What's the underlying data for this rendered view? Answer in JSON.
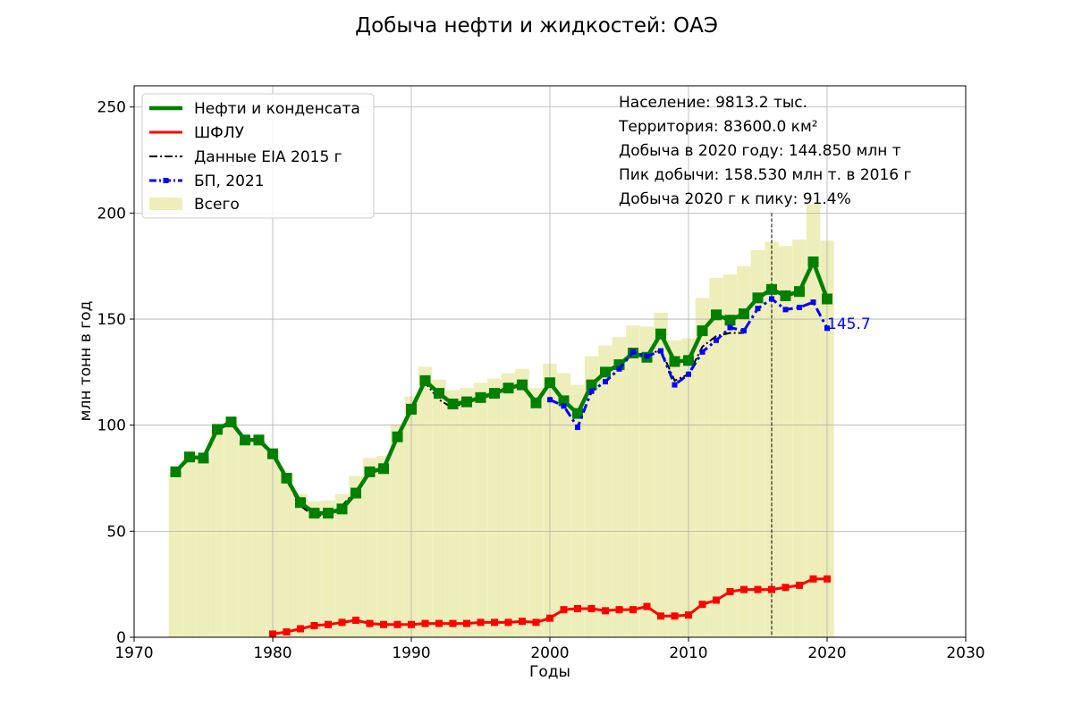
{
  "chart_data": {
    "type": "line",
    "title": "Добыча нефти и жидкостей: ОАЭ",
    "xlabel": "Годы",
    "ylabel": "млн тонн в год",
    "xlim": [
      1970,
      2030
    ],
    "ylim": [
      0,
      260
    ],
    "xticks": [
      1970,
      1980,
      1990,
      2000,
      2010,
      2020,
      2030
    ],
    "yticks": [
      0,
      50,
      100,
      150,
      200,
      250
    ],
    "grid": true,
    "legend_position": "top-left",
    "info_lines": [
      "Население: 9813.2 тыс.",
      "Территория: 83600.0 км²",
      "Добыча в 2020 году: 144.850 млн т",
      "Пик добычи: 158.530 млн т. в 2016 г",
      "Добыча 2020 г к пику: 91.4%"
    ],
    "peak_line_year": 2016,
    "last_value_label": "145.7",
    "series": [
      {
        "name": "Нефти и конденсата",
        "color": "#008000",
        "style": "solid-square",
        "x": [
          1973,
          1974,
          1975,
          1976,
          1977,
          1978,
          1979,
          1980,
          1981,
          1982,
          1983,
          1984,
          1985,
          1986,
          1987,
          1988,
          1989,
          1990,
          1991,
          1992,
          1993,
          1994,
          1995,
          1996,
          1997,
          1998,
          1999,
          2000,
          2001,
          2002,
          2003,
          2004,
          2005,
          2006,
          2007,
          2008,
          2009,
          2010,
          2011,
          2012,
          2013,
          2014,
          2015,
          2016,
          2017,
          2018,
          2019,
          2020
        ],
        "values": [
          78,
          85,
          84.5,
          98,
          101.5,
          93,
          93,
          86.5,
          75,
          63.5,
          58.5,
          58.5,
          60.5,
          68,
          78,
          79.5,
          94.5,
          107.5,
          121,
          115,
          110,
          111,
          113,
          115,
          117.5,
          119,
          110.5,
          120,
          111.5,
          105.5,
          119,
          125,
          128.5,
          134,
          132,
          143,
          130,
          130.5,
          144.5,
          152,
          149.5,
          152.5,
          160,
          164,
          161,
          163,
          177,
          159.5
        ]
      },
      {
        "name": "ШФЛУ",
        "color": "#ff0000",
        "style": "solid-square",
        "x": [
          1980,
          1981,
          1982,
          1983,
          1984,
          1985,
          1986,
          1987,
          1988,
          1989,
          1990,
          1991,
          1992,
          1993,
          1994,
          1995,
          1996,
          1997,
          1998,
          1999,
          2000,
          2001,
          2002,
          2003,
          2004,
          2005,
          2006,
          2007,
          2008,
          2009,
          2010,
          2011,
          2012,
          2013,
          2014,
          2015,
          2016,
          2017,
          2018,
          2019,
          2020
        ],
        "values": [
          1.5,
          2.5,
          4,
          5.5,
          6,
          7,
          8,
          6.5,
          6,
          6,
          6,
          6.5,
          6.5,
          6.5,
          6.5,
          7,
          7,
          7,
          7.5,
          7,
          9,
          13,
          13.5,
          13.5,
          12.5,
          13,
          13,
          14.5,
          10,
          10,
          10.5,
          15.5,
          17.5,
          21.5,
          22.5,
          22.5,
          22.5,
          23.5,
          24.5,
          27.5,
          27.5
        ]
      },
      {
        "name": "Данные EIA 2015 г",
        "color": "#000000",
        "style": "dashdot",
        "x": [
          1980,
          1981,
          1982,
          1983,
          1984,
          1985,
          1986,
          1987,
          1988,
          1989,
          1990,
          1991,
          1992,
          1993,
          1994,
          1995,
          1996,
          1997,
          1998,
          1999,
          2000,
          2001,
          2002,
          2003,
          2004,
          2005,
          2006,
          2007,
          2008,
          2009,
          2010,
          2011,
          2012,
          2013,
          2014
        ],
        "values": [
          87,
          74,
          62,
          57,
          58,
          62,
          69,
          77.5,
          79,
          93.5,
          107,
          120,
          112,
          108,
          111.5,
          113,
          115.5,
          117.5,
          120,
          110.5,
          120,
          112.5,
          105,
          119,
          125.5,
          128.5,
          134,
          133,
          135.5,
          121,
          124,
          137,
          142,
          143.5,
          143.5
        ]
      },
      {
        "name": "БП, 2021",
        "color": "#0000ff",
        "style": "dashdot-square",
        "x": [
          2000,
          2001,
          2002,
          2003,
          2004,
          2005,
          2006,
          2007,
          2008,
          2009,
          2010,
          2011,
          2012,
          2013,
          2014,
          2015,
          2016,
          2017,
          2018,
          2019,
          2020
        ],
        "values": [
          112,
          109,
          99,
          116,
          120.5,
          126.5,
          134.5,
          132.5,
          135,
          119,
          124,
          134.5,
          140,
          146,
          144.5,
          155,
          159.5,
          154.5,
          155.5,
          158,
          145.7
        ]
      }
    ],
    "total_bars": {
      "name": "Всего",
      "color": "#eeeebb",
      "x": [
        1973,
        1974,
        1975,
        1976,
        1977,
        1978,
        1979,
        1980,
        1981,
        1982,
        1983,
        1984,
        1985,
        1986,
        1987,
        1988,
        1989,
        1990,
        1991,
        1992,
        1993,
        1994,
        1995,
        1996,
        1997,
        1998,
        1999,
        2000,
        2001,
        2002,
        2003,
        2004,
        2005,
        2006,
        2007,
        2008,
        2009,
        2010,
        2011,
        2012,
        2013,
        2014,
        2015,
        2016,
        2017,
        2018,
        2019,
        2020
      ],
      "values": [
        78,
        85,
        84.5,
        98,
        101.5,
        93,
        93,
        88,
        77.5,
        67.5,
        64,
        64.5,
        67.5,
        76,
        84.5,
        85.5,
        100.5,
        113.5,
        127.5,
        121.5,
        116.5,
        117.5,
        120,
        122,
        124.5,
        126.5,
        117.5,
        129,
        124.5,
        119,
        132.5,
        137.5,
        141.5,
        147,
        146.5,
        153,
        140,
        141,
        160,
        169.5,
        171,
        175,
        182.5,
        186.5,
        184.5,
        187.5,
        204.5,
        187
      ]
    }
  }
}
